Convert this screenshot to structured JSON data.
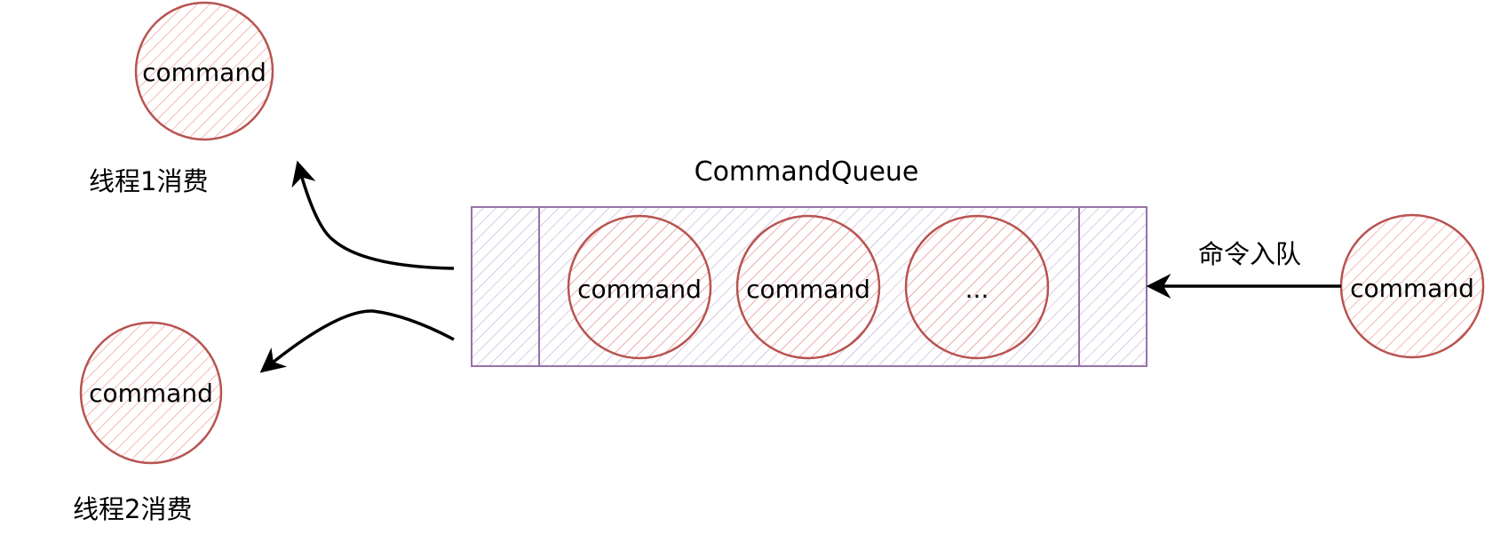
{
  "queue": {
    "title": "CommandQueue",
    "items": [
      {
        "label": "command"
      },
      {
        "label": "command"
      },
      {
        "label": "..."
      }
    ]
  },
  "incoming": {
    "label": "command",
    "arrow_label": "命令入队"
  },
  "consumers": [
    {
      "command_label": "command",
      "label": "线程1消费"
    },
    {
      "command_label": "command",
      "label": "线程2消费"
    }
  ],
  "colors": {
    "circle_stroke": "#b85450",
    "circle_hatch": "#f19c99",
    "queue_stroke": "#9673a6",
    "queue_hatch": "#c3abd0",
    "arrow": "#000000"
  }
}
